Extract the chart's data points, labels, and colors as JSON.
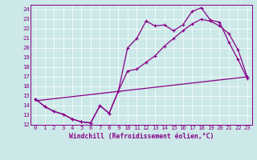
{
  "xlabel": "Windchill (Refroidissement éolien,°C)",
  "bg_color": "#cce8e8",
  "line_color": "#880088",
  "xlim": [
    -0.5,
    23.5
  ],
  "ylim": [
    12,
    24.5
  ],
  "xticks": [
    0,
    1,
    2,
    3,
    4,
    5,
    6,
    7,
    8,
    9,
    10,
    11,
    12,
    13,
    14,
    15,
    16,
    17,
    18,
    19,
    20,
    21,
    22,
    23
  ],
  "yticks": [
    12,
    13,
    14,
    15,
    16,
    17,
    18,
    19,
    20,
    21,
    22,
    23,
    24
  ],
  "series1_x": [
    0,
    1,
    2,
    3,
    4,
    5,
    6,
    7,
    8,
    9,
    10,
    11,
    12,
    13,
    14,
    15,
    16,
    17,
    18,
    19,
    20,
    21,
    22,
    23
  ],
  "series1_y": [
    14.7,
    13.9,
    13.4,
    13.1,
    12.6,
    12.3,
    12.2,
    14.0,
    13.2,
    15.5,
    20.0,
    21.0,
    22.8,
    22.3,
    22.4,
    21.8,
    22.4,
    23.8,
    24.2,
    22.9,
    22.7,
    20.6,
    18.8,
    16.8
  ],
  "series2_x": [
    0,
    1,
    2,
    3,
    4,
    5,
    6,
    7,
    8,
    9,
    10,
    11,
    12,
    13,
    14,
    15,
    16,
    17,
    18,
    19,
    20,
    21,
    22,
    23
  ],
  "series2_y": [
    14.7,
    13.9,
    13.4,
    13.1,
    12.6,
    12.3,
    12.2,
    14.0,
    13.2,
    15.5,
    17.6,
    17.8,
    18.5,
    19.2,
    20.2,
    21.0,
    21.8,
    22.5,
    23.0,
    22.8,
    22.3,
    21.5,
    19.8,
    17.0
  ],
  "series3_x": [
    0,
    23
  ],
  "series3_y": [
    14.5,
    17.0
  ]
}
